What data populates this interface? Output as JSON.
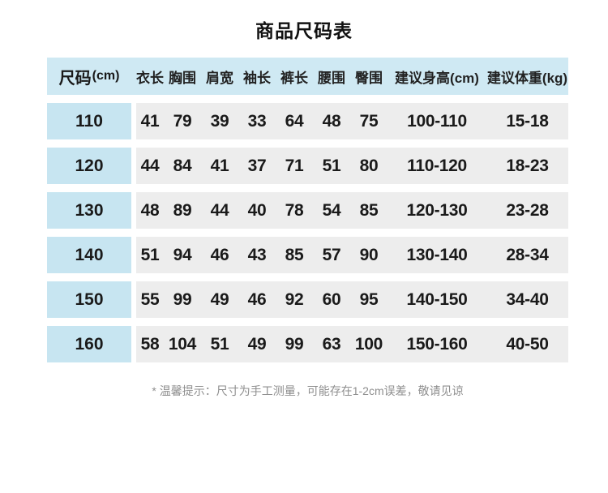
{
  "colors": {
    "header_bg": "#cfe9f3",
    "size_cell_bg": "#c7e5f1",
    "value_cell_bg": "#ededed"
  },
  "chart_data": {
    "type": "table",
    "title": "商品尺码表",
    "size_column": {
      "label": "尺码",
      "unit": "(cm)"
    },
    "columns": [
      "衣长",
      "胸围",
      "肩宽",
      "袖长",
      "裤长",
      "腰围",
      "臀围",
      "建议身高(cm)",
      "建议体重(kg)"
    ],
    "rows": [
      {
        "size": "110",
        "values": [
          "41",
          "79",
          "39",
          "33",
          "64",
          "48",
          "75",
          "100-110",
          "15-18"
        ]
      },
      {
        "size": "120",
        "values": [
          "44",
          "84",
          "41",
          "37",
          "71",
          "51",
          "80",
          "110-120",
          "18-23"
        ]
      },
      {
        "size": "130",
        "values": [
          "48",
          "89",
          "44",
          "40",
          "78",
          "54",
          "85",
          "120-130",
          "23-28"
        ]
      },
      {
        "size": "140",
        "values": [
          "51",
          "94",
          "46",
          "43",
          "85",
          "57",
          "90",
          "130-140",
          "28-34"
        ]
      },
      {
        "size": "150",
        "values": [
          "55",
          "99",
          "49",
          "46",
          "92",
          "60",
          "95",
          "140-150",
          "34-40"
        ]
      },
      {
        "size": "160",
        "values": [
          "58",
          "104",
          "51",
          "49",
          "99",
          "63",
          "100",
          "150-160",
          "40-50"
        ]
      }
    ],
    "note": "* 温馨提示：尺寸为手工测量，可能存在1-2cm误差，敬请见谅"
  }
}
